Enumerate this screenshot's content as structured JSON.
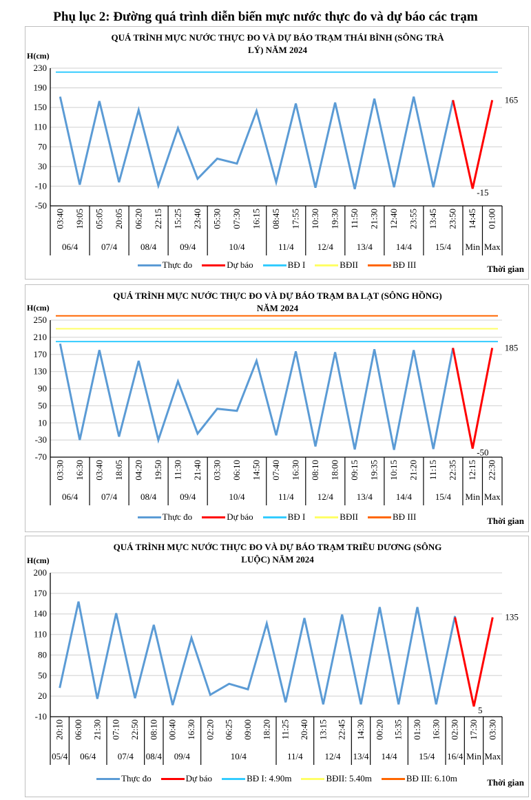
{
  "page_title": "Phụ lục 2: Đường quá trình diễn biến mực nước thực đo và dự báo các trạm",
  "chart_data": [
    {
      "type": "line",
      "title_lines": [
        "QUÁ TRÌNH MỰC NƯỚC THỰC ĐO VÀ DỰ BÁO TRẠM THÁI BÌNH (SÔNG TRÀ",
        "LÝ) NĂM 2024"
      ],
      "ylabel": "H(cm)",
      "xlabel": "Thời gian",
      "ylim": [
        -50,
        230
      ],
      "yticks": [
        "-50",
        "-10",
        "30",
        "70",
        "110",
        "150",
        "190",
        "230"
      ],
      "x_labels": [
        "03:40",
        "19:05",
        "05:05",
        "20:05",
        "06:20",
        "22:15",
        "15:25",
        "23:40",
        "05:30",
        "07:30",
        "16:15",
        "08:45",
        "17:55",
        "10:30",
        "19:30",
        "11:50",
        "21:30",
        "12:40",
        "23:55",
        "13:45",
        "23:50",
        "14:45",
        "01:00"
      ],
      "groups": [
        {
          "label": "06/4",
          "count": 2
        },
        {
          "label": "07/4",
          "count": 2
        },
        {
          "label": "08/4",
          "count": 2
        },
        {
          "label": "09/4",
          "count": 2
        },
        {
          "label": "10/4",
          "count": 3
        },
        {
          "label": "11/4",
          "count": 2
        },
        {
          "label": "12/4",
          "count": 2
        },
        {
          "label": "13/4",
          "count": 2
        },
        {
          "label": "14/4",
          "count": 2
        },
        {
          "label": "15/4",
          "count": 2
        },
        {
          "label": "Min",
          "count": 1
        },
        {
          "label": "Max",
          "count": 1
        }
      ],
      "series": [
        {
          "name": "Thực đo",
          "color": "#5B9BD5",
          "values": [
            172,
            -7,
            163,
            -2,
            145,
            -9,
            108,
            5,
            46,
            36,
            143,
            -2,
            158,
            -13,
            160,
            -16,
            168,
            -12,
            172,
            -12,
            165,
            null,
            null
          ]
        },
        {
          "name": "Dự báo",
          "color": "#FF0000",
          "values": [
            null,
            null,
            null,
            null,
            null,
            null,
            null,
            null,
            null,
            null,
            null,
            null,
            null,
            null,
            null,
            null,
            null,
            null,
            null,
            null,
            165,
            -15,
            165
          ]
        }
      ],
      "thresholds": [
        {
          "name": "BĐ I",
          "color": "#33CCFF",
          "value": 222
        }
      ],
      "data_labels": [
        {
          "index": 22,
          "value": 165,
          "text": "165"
        },
        {
          "index": 21,
          "value": -15,
          "text": "-15"
        }
      ],
      "legend": [
        {
          "name": "Thực đo",
          "color": "#5B9BD5"
        },
        {
          "name": "Dự báo",
          "color": "#FF0000"
        },
        {
          "name": "BĐ I",
          "color": "#33CCFF"
        },
        {
          "name": "BĐII",
          "color": "#FFFF66"
        },
        {
          "name": "BĐ III",
          "color": "#FF6600"
        }
      ]
    },
    {
      "type": "line",
      "title_lines": [
        "QUÁ TRÌNH MỰC NƯỚC THỰC ĐO VÀ DỰ BÁO TRẠM BA LẠT (SÔNG HỒNG)",
        "NĂM 2024"
      ],
      "ylabel": "H(cm)",
      "xlabel": "Thời gian",
      "ylim": [
        -70,
        250
      ],
      "yticks": [
        "-70",
        "-30",
        "10",
        "50",
        "90",
        "130",
        "170",
        "210",
        "250"
      ],
      "x_labels": [
        "03:30",
        "16:30",
        "03:40",
        "18:05",
        "04:20",
        "19:50",
        "11:30",
        "21:40",
        "03:30",
        "06:10",
        "14:50",
        "07:40",
        "16:30",
        "08:10",
        "18:00",
        "09:15",
        "19:35",
        "10:15",
        "21:20",
        "11:15",
        "22:35",
        "12:15",
        "22:30"
      ],
      "groups": [
        {
          "label": "06/4",
          "count": 2
        },
        {
          "label": "07/4",
          "count": 2
        },
        {
          "label": "08/4",
          "count": 2
        },
        {
          "label": "09/4",
          "count": 2
        },
        {
          "label": "10/4",
          "count": 3
        },
        {
          "label": "11/4",
          "count": 2
        },
        {
          "label": "12/4",
          "count": 2
        },
        {
          "label": "13/4",
          "count": 2
        },
        {
          "label": "14/4",
          "count": 2
        },
        {
          "label": "15/4",
          "count": 2
        },
        {
          "label": "Min",
          "count": 1
        },
        {
          "label": "Max",
          "count": 1
        }
      ],
      "series": [
        {
          "name": "Thực đo",
          "color": "#5B9BD5",
          "values": [
            195,
            -30,
            180,
            -22,
            155,
            -30,
            107,
            -15,
            43,
            38,
            155,
            -19,
            177,
            -45,
            175,
            -52,
            182,
            -53,
            180,
            -51,
            185,
            null,
            null
          ]
        },
        {
          "name": "Dự báo",
          "color": "#FF0000",
          "values": [
            null,
            null,
            null,
            null,
            null,
            null,
            null,
            null,
            null,
            null,
            null,
            null,
            null,
            null,
            null,
            null,
            null,
            null,
            null,
            null,
            185,
            -50,
            185
          ]
        }
      ],
      "thresholds": [
        {
          "name": "BĐ I",
          "color": "#33CCFF",
          "value": 200
        },
        {
          "name": "BĐII",
          "color": "#FFFF66",
          "value": 230
        },
        {
          "name": "BĐ III",
          "color": "#FF6600",
          "value": 260
        }
      ],
      "data_labels": [
        {
          "index": 22,
          "value": 185,
          "text": "185"
        },
        {
          "index": 21,
          "value": -50,
          "text": "-50"
        }
      ],
      "legend": [
        {
          "name": "Thực đo",
          "color": "#5B9BD5"
        },
        {
          "name": "Dự báo",
          "color": "#FF0000"
        },
        {
          "name": "BĐ I",
          "color": "#33CCFF"
        },
        {
          "name": "BĐII",
          "color": "#FFFF66"
        },
        {
          "name": "BĐ III",
          "color": "#FF6600"
        }
      ]
    },
    {
      "type": "line",
      "title_lines": [
        "QUÁ TRÌNH MỰC NƯỚC THỰC ĐO VÀ DỰ BÁO TRẠM TRIỀU DƯƠNG (SÔNG",
        "LUỘC) NĂM 2024"
      ],
      "ylabel": "H(cm)",
      "xlabel": "Thời gian",
      "ylim": [
        -10,
        200
      ],
      "yticks": [
        "-10",
        "20",
        "50",
        "80",
        "110",
        "140",
        "170",
        "200"
      ],
      "x_labels": [
        "20:10",
        "06:00",
        "21:30",
        "07:10",
        "22:50",
        "08:10",
        "00:40",
        "16:30",
        "02:20",
        "06:25",
        "09:00",
        "18:20",
        "11:25",
        "20:40",
        "13:15",
        "22:45",
        "14:30",
        "00:20",
        "15:35",
        "01:30",
        "16:30",
        "02:30",
        "17:30",
        "03:30"
      ],
      "groups": [
        {
          "label": "05/4",
          "count": 1
        },
        {
          "label": "06/4",
          "count": 2
        },
        {
          "label": "07/4",
          "count": 2
        },
        {
          "label": "08/4",
          "count": 1
        },
        {
          "label": "09/4",
          "count": 2
        },
        {
          "label": "10/4",
          "count": 4
        },
        {
          "label": "11/4",
          "count": 2
        },
        {
          "label": "12/4",
          "count": 2
        },
        {
          "label": "13/4",
          "count": 1
        },
        {
          "label": "14/4",
          "count": 2
        },
        {
          "label": "15/4",
          "count": 2
        },
        {
          "label": "16/4",
          "count": 1
        },
        {
          "label": "Min",
          "count": 1
        },
        {
          "label": "Max",
          "count": 1
        }
      ],
      "series": [
        {
          "name": "Thực đo",
          "color": "#5B9BD5",
          "values": [
            32,
            158,
            16,
            141,
            17,
            124,
            7,
            105,
            22,
            38,
            30,
            126,
            11,
            134,
            8,
            139,
            8,
            150,
            8,
            150,
            8,
            137,
            null,
            null
          ]
        },
        {
          "name": "Dự báo",
          "color": "#FF0000",
          "values": [
            null,
            null,
            null,
            null,
            null,
            null,
            null,
            null,
            null,
            null,
            null,
            null,
            null,
            null,
            null,
            null,
            null,
            null,
            null,
            null,
            null,
            135,
            5,
            135
          ]
        }
      ],
      "thresholds": [],
      "data_labels": [
        {
          "index": 23,
          "value": 135,
          "text": "135"
        },
        {
          "index": 22,
          "value": 5,
          "text": "5"
        }
      ],
      "legend": [
        {
          "name": "Thực đo",
          "color": "#5B9BD5"
        },
        {
          "name": "Dự báo",
          "color": "#FF0000"
        },
        {
          "name": "BĐ I: 4.90m",
          "color": "#33CCFF"
        },
        {
          "name": "BĐII: 5.40m",
          "color": "#FFFF66"
        },
        {
          "name": "BĐ III: 6.10m",
          "color": "#FF6600"
        }
      ]
    }
  ]
}
